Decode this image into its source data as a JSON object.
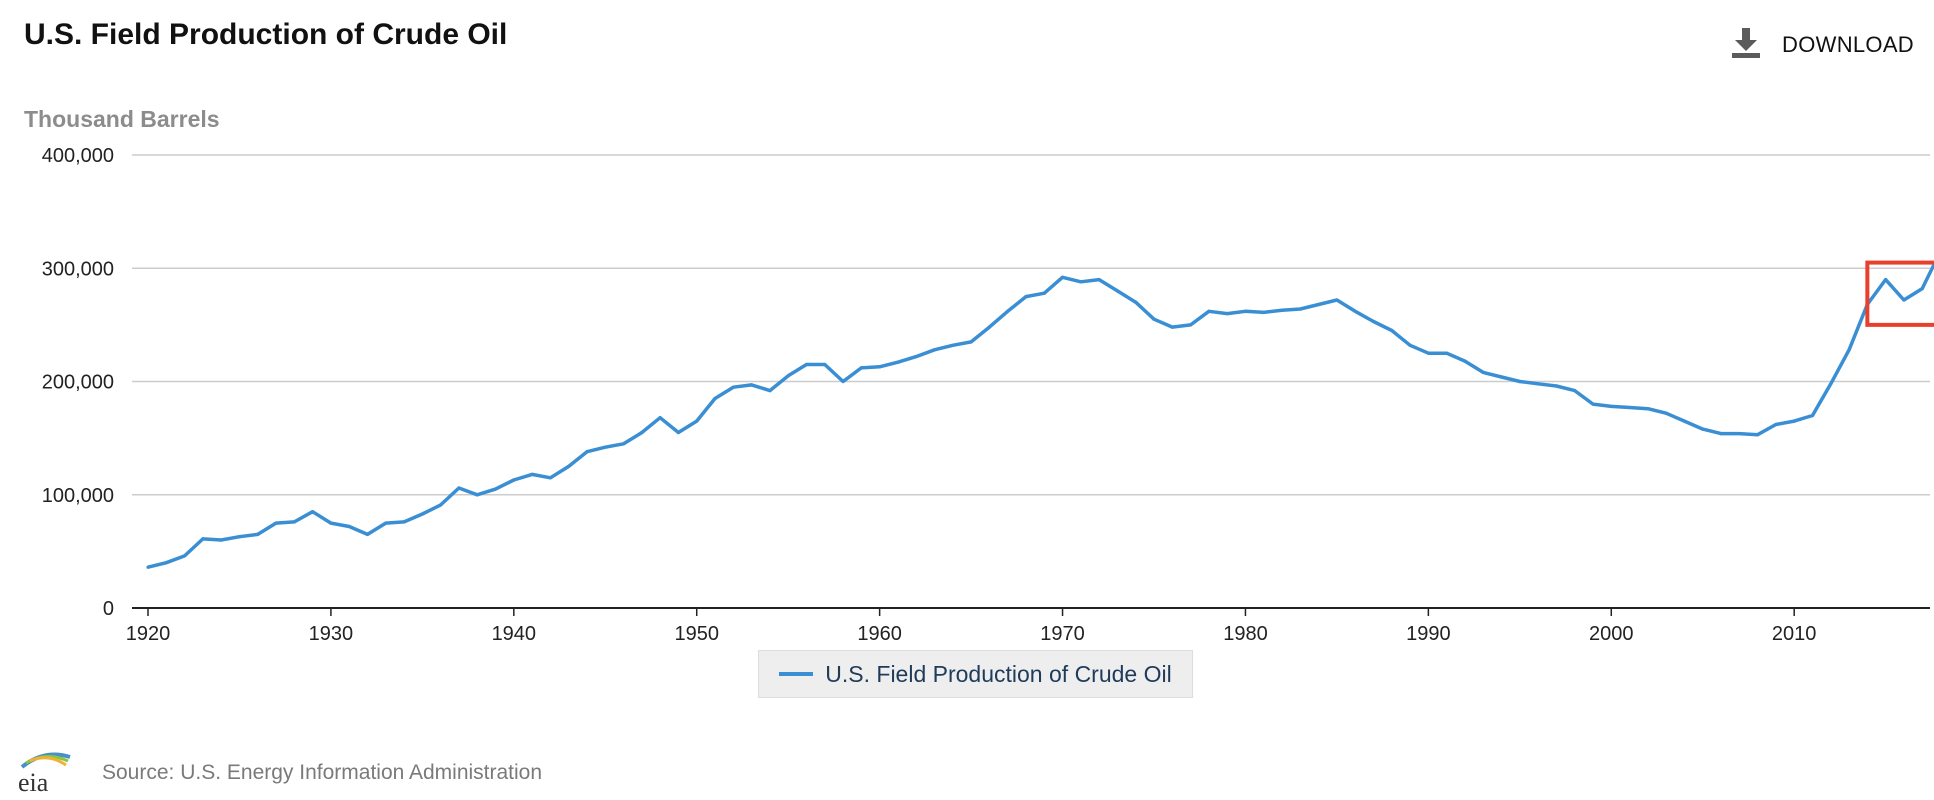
{
  "header": {
    "title": "U.S. Field Production of Crude Oil",
    "download_label": "DOWNLOAD",
    "download_icon": "download-icon"
  },
  "legend": {
    "label": "U.S. Field Production of Crude Oil"
  },
  "footer": {
    "logo_text": "eia",
    "source": "Source: U.S. Energy Information Administration"
  },
  "colors": {
    "series": "#3a8fd4",
    "highlight_box": "#e8402d",
    "grid": "#cccccc",
    "legend_bg": "#eeeeee"
  },
  "chart_data": {
    "type": "line",
    "title": "U.S. Field Production of Crude Oil",
    "ylabel": "Thousand Barrels",
    "xlabel": "",
    "xlim": [
      1920,
      2018.3
    ],
    "ylim": [
      0,
      400000
    ],
    "y_ticks": [
      0,
      100000,
      200000,
      300000,
      400000
    ],
    "y_tick_labels": [
      "0",
      "100,000",
      "200,000",
      "300,000",
      "400,000"
    ],
    "x_ticks": [
      1920,
      1930,
      1940,
      1950,
      1960,
      1970,
      1980,
      1990,
      2000,
      2010
    ],
    "grid": true,
    "legend_position": "bottom-center",
    "series": [
      {
        "name": "U.S. Field Production of Crude Oil",
        "x": [
          1920,
          1921,
          1922,
          1923,
          1924,
          1925,
          1926,
          1927,
          1928,
          1929,
          1930,
          1931,
          1932,
          1933,
          1934,
          1935,
          1936,
          1937,
          1938,
          1939,
          1940,
          1941,
          1942,
          1943,
          1944,
          1945,
          1946,
          1947,
          1948,
          1949,
          1950,
          1951,
          1952,
          1953,
          1954,
          1955,
          1956,
          1957,
          1958,
          1959,
          1960,
          1961,
          1962,
          1963,
          1964,
          1965,
          1966,
          1967,
          1968,
          1969,
          1970,
          1971,
          1972,
          1973,
          1974,
          1975,
          1976,
          1977,
          1978,
          1979,
          1980,
          1981,
          1982,
          1983,
          1984,
          1985,
          1986,
          1987,
          1988,
          1989,
          1990,
          1991,
          1992,
          1993,
          1994,
          1995,
          1996,
          1997,
          1998,
          1999,
          2000,
          2001,
          2002,
          2003,
          2004,
          2005,
          2006,
          2007,
          2008,
          2009,
          2010,
          2011,
          2012,
          2013,
          2014,
          2015,
          2016,
          2017,
          2018
        ],
        "values": [
          36000,
          40000,
          46000,
          61000,
          60000,
          63000,
          65000,
          75000,
          76000,
          85000,
          75000,
          72000,
          65000,
          75000,
          76000,
          83000,
          91000,
          106000,
          100000,
          105000,
          113000,
          118000,
          115000,
          125000,
          138000,
          142000,
          145000,
          155000,
          168000,
          155000,
          165000,
          185000,
          195000,
          197000,
          192000,
          205000,
          215000,
          215000,
          200000,
          212000,
          213000,
          217000,
          222000,
          228000,
          232000,
          235000,
          248000,
          262000,
          275000,
          278000,
          292000,
          288000,
          290000,
          280000,
          270000,
          255000,
          248000,
          250000,
          262000,
          260000,
          262000,
          261000,
          263000,
          264000,
          268000,
          272000,
          262000,
          253000,
          245000,
          232000,
          225000,
          225000,
          218000,
          208000,
          204000,
          200000,
          198000,
          196000,
          192000,
          180000,
          178000,
          177000,
          176000,
          172000,
          165000,
          158000,
          154000,
          154000,
          153000,
          162000,
          165000,
          170000,
          198000,
          228000,
          268000,
          290000,
          272000,
          282000,
          315000
        ]
      }
    ],
    "annotations": [
      {
        "type": "rectangle",
        "x_range": [
          2014.0,
          2018.3
        ],
        "y_range": [
          250000,
          305000
        ]
      }
    ]
  }
}
